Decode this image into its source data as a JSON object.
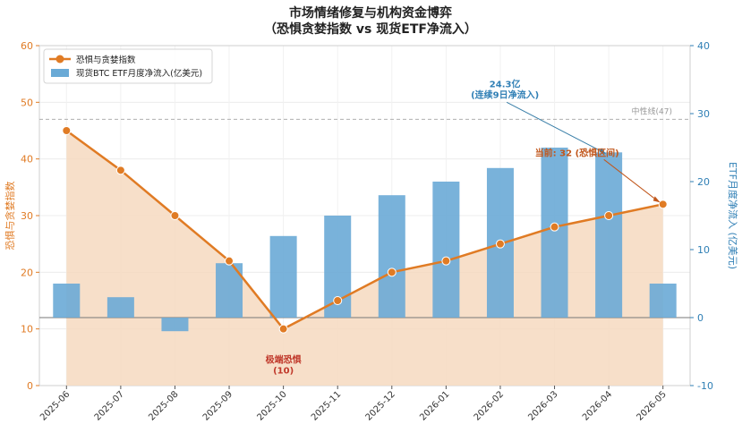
{
  "chart_data": {
    "type": "bar+line",
    "title_line1": "市场情绪修复与机构资金博弈",
    "title_line2": "（恐惧贪婪指数 vs 现货ETF净流入）",
    "categories": [
      "2025-06",
      "2025-07",
      "2025-08",
      "2025-09",
      "2025-10",
      "2025-11",
      "2025-12",
      "2026-01",
      "2026-02",
      "2026-03",
      "2026-04",
      "2026-05"
    ],
    "line_series": {
      "name": "恐惧与贪婪指数",
      "values": [
        45,
        38,
        30,
        22,
        10,
        15,
        20,
        22,
        25,
        28,
        30,
        32
      ],
      "color": "#e07b24",
      "fill": "#f6d9bf"
    },
    "bar_series": {
      "name": "现货BTC ETF月度净流入(亿美元)",
      "values": [
        5,
        3,
        -2,
        8,
        12,
        15,
        18,
        20,
        22,
        25,
        24.3,
        5
      ],
      "color": "#6aaad6"
    },
    "y_left": {
      "label": "恐惧与贪婪指数",
      "range": [
        0,
        60
      ],
      "ticks": [
        0,
        10,
        20,
        30,
        40,
        50,
        60
      ],
      "color": "#e07b24"
    },
    "y_right": {
      "label": "ETF月度净流入 (亿美元)",
      "range": [
        -10,
        40
      ],
      "ticks": [
        -10,
        0,
        10,
        20,
        30,
        40
      ],
      "color": "#2f7fb5"
    },
    "neutral_line": {
      "value": 47,
      "label": "中性线(47)"
    },
    "annotations": {
      "extreme_fear_line1": "极端恐惧",
      "extreme_fear_line2": "(10)",
      "inflow_line1": "24.3亿",
      "inflow_line2": "(连续9日净流入)",
      "current": "当前: 32 (恐惧区间)"
    },
    "grid": true,
    "legend_position": "top-left"
  }
}
